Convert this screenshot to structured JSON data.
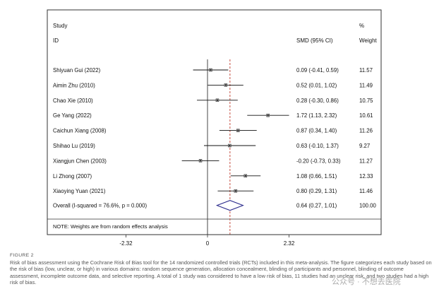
{
  "chart_data": {
    "type": "forest",
    "header": {
      "study_top": "Study",
      "study_bottom": "ID",
      "weight_top": "%",
      "smd": "SMD (95% CI)",
      "weight_bottom": "Weight"
    },
    "studies": [
      {
        "label": "Shiyuan Gui (2022)",
        "smd": 0.09,
        "lo": -0.41,
        "hi": 0.59,
        "ci_text": "0.09 (-0.41, 0.59)",
        "weight": "11.57"
      },
      {
        "label": "Aimin Zhu (2010)",
        "smd": 0.52,
        "lo": 0.01,
        "hi": 1.02,
        "ci_text": "0.52 (0.01, 1.02)",
        "weight": "11.49"
      },
      {
        "label": "Chao Xie (2010)",
        "smd": 0.28,
        "lo": -0.3,
        "hi": 0.86,
        "ci_text": "0.28 (-0.30, 0.86)",
        "weight": "10.75"
      },
      {
        "label": "Ge Yang (2022)",
        "smd": 1.72,
        "lo": 1.13,
        "hi": 2.32,
        "ci_text": "1.72 (1.13, 2.32)",
        "weight": "10.61"
      },
      {
        "label": "Caichun Xiang (2008)",
        "smd": 0.87,
        "lo": 0.34,
        "hi": 1.4,
        "ci_text": "0.87 (0.34, 1.40)",
        "weight": "11.26"
      },
      {
        "label": "Shihao Lu (2019)",
        "smd": 0.63,
        "lo": -0.1,
        "hi": 1.37,
        "ci_text": "0.63 (-0.10, 1.37)",
        "weight": "9.27"
      },
      {
        "label": "Xiangjun Chen (2003)",
        "smd": -0.2,
        "lo": -0.73,
        "hi": 0.33,
        "ci_text": "-0.20 (-0.73, 0.33)",
        "weight": "11.27"
      },
      {
        "label": "Li Zhong (2007)",
        "smd": 1.08,
        "lo": 0.66,
        "hi": 1.51,
        "ci_text": "1.08 (0.66, 1.51)",
        "weight": "12.33"
      },
      {
        "label": "Xiaoying Yuan (2021)",
        "smd": 0.8,
        "lo": 0.29,
        "hi": 1.31,
        "ci_text": "0.80 (0.29, 1.31)",
        "weight": "11.46"
      }
    ],
    "overall": {
      "label": "Overall  (I-squared = 76.6%, p = 0.000)",
      "smd": 0.64,
      "lo": 0.27,
      "hi": 1.01,
      "ci_text": "0.64 (0.27, 1.01)",
      "weight": "100.00"
    },
    "note": "NOTE: Weights are from random effects analysis",
    "x_ticks": [
      -2.32,
      0,
      2.32
    ],
    "x_tick_labels": [
      "-2.32",
      "0",
      "2.32"
    ],
    "xlim": [
      -2.32,
      2.32
    ],
    "colors": {
      "estimate_line": "#c0392b",
      "diamond": "#2b2b8c",
      "lines": "#111111"
    }
  },
  "caption": {
    "figure_label": "FIGURE 2",
    "text": "Risk of bias assessment using the Cochrane Risk of Bias tool for the 14 randomized controlled trials (RCTs) included in this meta-analysis. The figure categorizes each study based on the risk of bias (low, unclear, or high) in various domains: random sequence generation, allocation concealment, blinding of participants and personnel, blinding of outcome assessment, incomplete outcome data, and selective reporting. A total of 1 study was considered to have a low risk of bias, 11 studies had an unclear risk, and two studies had a high risk of bias."
  },
  "watermark": "公众号 · 不想去医院"
}
